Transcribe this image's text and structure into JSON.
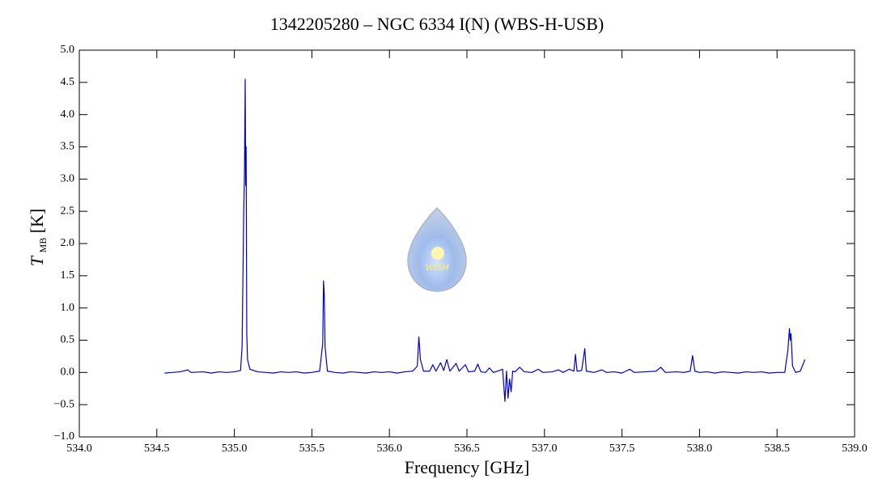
{
  "chart_data": {
    "type": "line",
    "title": "1342205280 – NGC 6334 I(N) (WBS-H-USB)",
    "xlabel": "Frequency [GHz]",
    "ylabel": {
      "symbol": "T",
      "subscript": "MB",
      "unit": "[K]"
    },
    "watermark": "WISH",
    "xlim": [
      534.0,
      539.0
    ],
    "ylim": [
      -1.0,
      5.0
    ],
    "xticks": [
      {
        "value": 534.0,
        "label": "534.0"
      },
      {
        "value": 534.5,
        "label": "534.5"
      },
      {
        "value": 535.0,
        "label": "535.0"
      },
      {
        "value": 535.5,
        "label": "535.5"
      },
      {
        "value": 536.0,
        "label": "536.0"
      },
      {
        "value": 536.5,
        "label": "536.5"
      },
      {
        "value": 537.0,
        "label": "537.0"
      },
      {
        "value": 537.5,
        "label": "537.5"
      },
      {
        "value": 538.0,
        "label": "538.0"
      },
      {
        "value": 538.5,
        "label": "538.5"
      },
      {
        "value": 539.0,
        "label": "539.0"
      }
    ],
    "yticks": [
      {
        "value": -1.0,
        "label": "−1.0"
      },
      {
        "value": -0.5,
        "label": "−0.5"
      },
      {
        "value": 0,
        "label": "0.0"
      },
      {
        "value": 0.5,
        "label": "0.5"
      },
      {
        "value": 1.0,
        "label": "1.0"
      },
      {
        "value": 1.5,
        "label": "1.5"
      },
      {
        "value": 2.0,
        "label": "2.0"
      },
      {
        "value": 2.5,
        "label": "2.5"
      },
      {
        "value": 3.0,
        "label": "3.0"
      },
      {
        "value": 3.5,
        "label": "3.5"
      },
      {
        "value": 4.0,
        "label": "4.0"
      },
      {
        "value": 4.5,
        "label": "4.5"
      },
      {
        "value": 5.0,
        "label": "5.0"
      }
    ],
    "x": [
      534.55,
      534.6,
      534.65,
      534.7,
      534.72,
      534.8,
      534.85,
      534.9,
      534.95,
      535.0,
      535.04,
      535.05,
      535.06,
      535.065,
      535.07,
      535.073,
      535.076,
      535.08,
      535.085,
      535.1,
      535.15,
      535.2,
      535.25,
      535.3,
      535.35,
      535.4,
      535.45,
      535.5,
      535.55,
      535.57,
      535.575,
      535.58,
      535.585,
      535.6,
      535.65,
      535.7,
      535.75,
      535.8,
      535.85,
      535.9,
      535.95,
      536.0,
      536.05,
      536.1,
      536.15,
      536.18,
      536.19,
      536.2,
      536.22,
      536.26,
      536.28,
      536.3,
      536.33,
      536.35,
      536.37,
      536.39,
      536.43,
      536.45,
      536.49,
      536.51,
      536.55,
      536.57,
      536.59,
      536.62,
      536.645,
      536.67,
      536.71,
      536.73,
      536.745,
      536.755,
      536.765,
      536.775,
      536.785,
      536.795,
      536.81,
      536.84,
      536.87,
      536.92,
      536.96,
      536.99,
      537.05,
      537.09,
      537.12,
      537.16,
      537.19,
      537.2,
      537.21,
      537.24,
      537.26,
      537.27,
      537.32,
      537.37,
      537.4,
      537.45,
      537.5,
      537.55,
      537.58,
      537.65,
      537.72,
      537.75,
      537.78,
      537.85,
      537.9,
      537.94,
      537.955,
      537.97,
      538.0,
      538.05,
      538.1,
      538.15,
      538.2,
      538.25,
      538.3,
      538.35,
      538.4,
      538.45,
      538.5,
      538.55,
      538.57,
      538.58,
      538.585,
      538.59,
      538.6,
      538.62,
      538.65,
      538.68
    ],
    "series": [
      {
        "color": "#0000cc",
        "values": [
          -0.01,
          0.0,
          0.01,
          0.04,
          0.0,
          0.01,
          -0.01,
          0.01,
          0.0,
          0.01,
          0.03,
          0.4,
          2.45,
          3.05,
          4.55,
          2.9,
          3.5,
          0.6,
          0.2,
          0.05,
          0.01,
          0.0,
          -0.01,
          0.01,
          0.0,
          0.01,
          -0.01,
          0.0,
          0.02,
          0.45,
          1.42,
          1.2,
          0.4,
          0.02,
          0.0,
          -0.01,
          0.01,
          0.0,
          -0.01,
          0.01,
          0.0,
          0.01,
          -0.01,
          0.01,
          0.02,
          0.1,
          0.55,
          0.2,
          0.02,
          0.02,
          0.12,
          0.02,
          0.15,
          0.03,
          0.2,
          0.02,
          0.14,
          0.02,
          0.12,
          0.01,
          0.02,
          0.13,
          0.01,
          0.0,
          0.07,
          0.0,
          0.03,
          0.05,
          -0.45,
          0.02,
          -0.4,
          -0.1,
          -0.3,
          0.02,
          0.01,
          0.08,
          0.01,
          0.0,
          0.05,
          0.0,
          0.01,
          0.04,
          0.0,
          0.05,
          0.02,
          0.28,
          0.02,
          0.03,
          0.37,
          0.02,
          0.0,
          0.04,
          0.0,
          0.01,
          -0.01,
          0.05,
          0.0,
          0.01,
          0.02,
          0.08,
          0.0,
          0.01,
          0.0,
          0.02,
          0.26,
          0.02,
          0.0,
          0.01,
          -0.01,
          0.01,
          0.0,
          -0.01,
          0.01,
          0.0,
          0.01,
          -0.01,
          0.0,
          0.0,
          0.35,
          0.68,
          0.5,
          0.6,
          0.1,
          0.0,
          0.02,
          0.2
        ]
      }
    ]
  }
}
